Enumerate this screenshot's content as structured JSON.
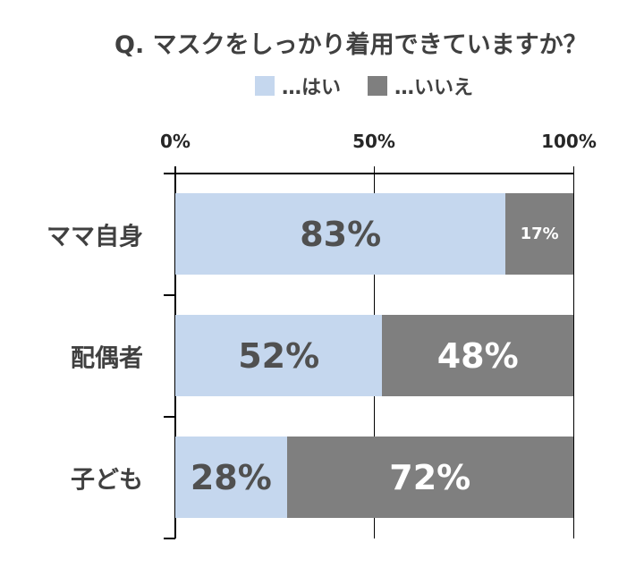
{
  "chart_data": {
    "type": "bar",
    "orientation": "horizontal",
    "stacked": true,
    "title": "Q. マスクをしっかり着用できていますか？",
    "xlabel": "",
    "ylabel": "",
    "xlim": [
      0,
      100
    ],
    "x_tick_labels": [
      "0%",
      "50%",
      "100%"
    ],
    "x_ticks": [
      0,
      50,
      100
    ],
    "grid": true,
    "legend_position": "top",
    "categories": [
      "ママ自身",
      "配偶者",
      "子ども"
    ],
    "series": [
      {
        "name": "…はい",
        "color": "#c5d7ee",
        "values": [
          83,
          52,
          28
        ],
        "labels": [
          "83%",
          "52%",
          "28%"
        ]
      },
      {
        "name": "…いいえ",
        "color": "#7f7f7f",
        "values": [
          17,
          48,
          72
        ],
        "labels": [
          "17%",
          "48%",
          "72%"
        ]
      }
    ]
  },
  "colors": {
    "yes": "#c5d7ee",
    "no": "#7f7f7f",
    "yes_label_text": "#505050",
    "no_label_text": "#ffffff"
  }
}
